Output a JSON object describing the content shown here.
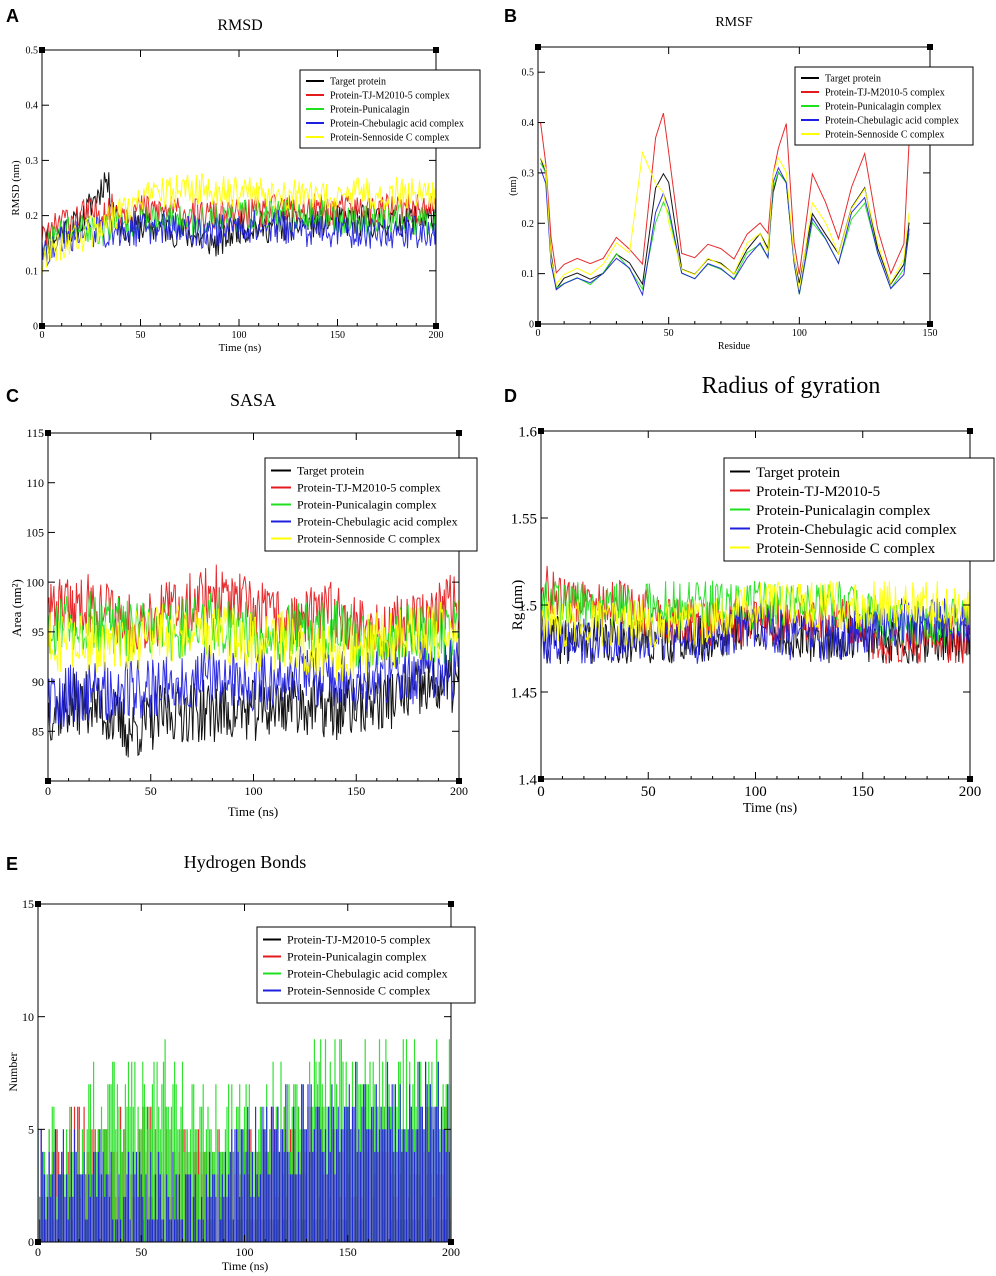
{
  "colors": {
    "black": "#000000",
    "red": "#e41a1c",
    "green": "#1fe01f",
    "blue": "#1f1fe0",
    "yellow": "#ffff00",
    "purple": "#7a1fa0"
  },
  "chart_data": [
    {
      "panel": "A",
      "type": "line",
      "title": "RMSD",
      "xlabel": "Time (ns)",
      "ylabel": "RMSD (nm)",
      "xlim": [
        0,
        200
      ],
      "ylim": [
        0,
        0.5
      ],
      "xticks": [
        0,
        50,
        100,
        150,
        200
      ],
      "yticks": [
        0,
        0.1,
        0.2,
        0.3,
        0.4,
        0.5
      ],
      "legend": "top-right",
      "series": [
        {
          "name": "Target protein",
          "color": "#000000",
          "x": [
            0,
            10,
            20,
            30,
            32,
            40,
            60,
            80,
            90,
            100,
            120,
            140,
            160,
            180,
            200
          ],
          "y": [
            0.15,
            0.17,
            0.19,
            0.25,
            0.27,
            0.18,
            0.18,
            0.16,
            0.15,
            0.18,
            0.18,
            0.19,
            0.19,
            0.19,
            0.2
          ]
        },
        {
          "name": "Protein-TJ-M2010-5 complex",
          "color": "#e41a1c",
          "x": [
            0,
            10,
            20,
            30,
            40,
            60,
            80,
            100,
            120,
            140,
            160,
            180,
            200
          ],
          "y": [
            0.15,
            0.19,
            0.2,
            0.21,
            0.21,
            0.21,
            0.2,
            0.2,
            0.21,
            0.21,
            0.21,
            0.21,
            0.21
          ]
        },
        {
          "name": "Protein-Punicalagin",
          "color": "#1fe01f",
          "x": [
            0,
            10,
            20,
            30,
            40,
            60,
            80,
            100,
            120,
            140,
            160,
            180,
            200
          ],
          "y": [
            0.14,
            0.17,
            0.18,
            0.17,
            0.19,
            0.19,
            0.19,
            0.2,
            0.2,
            0.2,
            0.19,
            0.19,
            0.19
          ]
        },
        {
          "name": "Protein-Chebulagic acid complex",
          "color": "#1f1fe0",
          "x": [
            0,
            10,
            20,
            30,
            40,
            60,
            80,
            100,
            120,
            140,
            160,
            180,
            200
          ],
          "y": [
            0.13,
            0.16,
            0.17,
            0.17,
            0.17,
            0.18,
            0.17,
            0.18,
            0.18,
            0.17,
            0.17,
            0.17,
            0.17
          ]
        },
        {
          "name": "Protein-Sennoside C complex",
          "color": "#ffff00",
          "x": [
            0,
            10,
            20,
            30,
            40,
            60,
            80,
            100,
            120,
            140,
            160,
            180,
            200
          ],
          "y": [
            0.12,
            0.15,
            0.16,
            0.18,
            0.21,
            0.24,
            0.25,
            0.24,
            0.24,
            0.23,
            0.24,
            0.24,
            0.24
          ]
        }
      ]
    },
    {
      "panel": "B",
      "type": "line",
      "title": "RMSF",
      "xlabel": "Residue",
      "ylabel": "(nm)",
      "xlim": [
        0,
        150
      ],
      "ylim": [
        0,
        0.55
      ],
      "xticks": [
        0,
        50,
        100,
        150
      ],
      "yticks": [
        0,
        0.1,
        0.2,
        0.3,
        0.4,
        0.5
      ],
      "legend": "top-right",
      "series": [
        {
          "name": "Target protein",
          "color": "#000000",
          "x": [
            1,
            3,
            5,
            7,
            10,
            15,
            20,
            25,
            30,
            35,
            40,
            45,
            48,
            50,
            55,
            60,
            65,
            70,
            75,
            80,
            85,
            88,
            90,
            92,
            95,
            98,
            100,
            105,
            110,
            115,
            120,
            125,
            130,
            135,
            140,
            142
          ],
          "y": [
            0.33,
            0.3,
            0.14,
            0.07,
            0.09,
            0.1,
            0.09,
            0.1,
            0.14,
            0.12,
            0.08,
            0.27,
            0.3,
            0.28,
            0.11,
            0.1,
            0.13,
            0.12,
            0.1,
            0.15,
            0.18,
            0.15,
            0.26,
            0.3,
            0.28,
            0.13,
            0.08,
            0.22,
            0.18,
            0.14,
            0.23,
            0.27,
            0.15,
            0.08,
            0.12,
            0.2
          ]
        },
        {
          "name": "Protein-TJ-M2010-5 complex",
          "color": "#e41a1c",
          "x": [
            1,
            3,
            5,
            7,
            10,
            15,
            20,
            25,
            30,
            35,
            40,
            45,
            48,
            50,
            55,
            60,
            65,
            70,
            75,
            80,
            85,
            88,
            90,
            92,
            95,
            98,
            100,
            105,
            110,
            115,
            120,
            125,
            130,
            135,
            140,
            142
          ],
          "y": [
            0.4,
            0.32,
            0.17,
            0.1,
            0.12,
            0.13,
            0.12,
            0.13,
            0.17,
            0.15,
            0.12,
            0.37,
            0.42,
            0.34,
            0.14,
            0.13,
            0.16,
            0.15,
            0.13,
            0.18,
            0.2,
            0.18,
            0.3,
            0.35,
            0.4,
            0.16,
            0.1,
            0.3,
            0.24,
            0.17,
            0.27,
            0.34,
            0.19,
            0.1,
            0.16,
            0.36
          ]
        },
        {
          "name": "Protein-Punicalagin complex",
          "color": "#1fe01f",
          "x": [
            1,
            3,
            5,
            7,
            10,
            15,
            20,
            25,
            30,
            35,
            40,
            45,
            48,
            50,
            55,
            60,
            65,
            70,
            75,
            80,
            85,
            88,
            90,
            92,
            95,
            98,
            100,
            105,
            110,
            115,
            120,
            125,
            130,
            135,
            140,
            142
          ],
          "y": [
            0.32,
            0.3,
            0.12,
            0.07,
            0.08,
            0.09,
            0.08,
            0.1,
            0.14,
            0.11,
            0.07,
            0.2,
            0.24,
            0.22,
            0.1,
            0.09,
            0.12,
            0.11,
            0.09,
            0.14,
            0.16,
            0.13,
            0.27,
            0.3,
            0.28,
            0.12,
            0.06,
            0.2,
            0.17,
            0.12,
            0.21,
            0.24,
            0.14,
            0.07,
            0.11,
            0.18
          ]
        },
        {
          "name": "Protein-Chebulagic acid complex",
          "color": "#1f1fe0",
          "x": [
            1,
            3,
            5,
            7,
            10,
            15,
            20,
            25,
            30,
            35,
            40,
            45,
            48,
            50,
            55,
            60,
            65,
            70,
            75,
            80,
            85,
            88,
            90,
            92,
            95,
            98,
            100,
            105,
            110,
            115,
            120,
            125,
            130,
            135,
            140,
            142
          ],
          "y": [
            0.31,
            0.28,
            0.12,
            0.07,
            0.08,
            0.09,
            0.08,
            0.1,
            0.13,
            0.11,
            0.06,
            0.22,
            0.26,
            0.23,
            0.1,
            0.09,
            0.12,
            0.11,
            0.09,
            0.13,
            0.16,
            0.13,
            0.28,
            0.31,
            0.28,
            0.12,
            0.06,
            0.21,
            0.17,
            0.12,
            0.22,
            0.25,
            0.14,
            0.07,
            0.1,
            0.19
          ]
        },
        {
          "name": "Protein-Sennoside C complex",
          "color": "#ffff00",
          "x": [
            1,
            3,
            5,
            7,
            10,
            15,
            20,
            25,
            30,
            35,
            40,
            45,
            48,
            50,
            55,
            60,
            65,
            70,
            75,
            80,
            85,
            88,
            90,
            92,
            95,
            98,
            100,
            105,
            110,
            115,
            120,
            125,
            130,
            135,
            140,
            142
          ],
          "y": [
            0.33,
            0.31,
            0.13,
            0.08,
            0.1,
            0.11,
            0.1,
            0.12,
            0.16,
            0.14,
            0.34,
            0.28,
            0.26,
            0.2,
            0.11,
            0.1,
            0.13,
            0.12,
            0.1,
            0.16,
            0.18,
            0.14,
            0.3,
            0.33,
            0.3,
            0.13,
            0.07,
            0.24,
            0.2,
            0.14,
            0.23,
            0.27,
            0.16,
            0.08,
            0.13,
            0.22
          ]
        }
      ]
    },
    {
      "panel": "C",
      "type": "line",
      "title": "SASA",
      "xlabel": "Time (ns)",
      "ylabel": "Area (nm²)",
      "xlim": [
        0,
        200
      ],
      "ylim": [
        80,
        115
      ],
      "xticks": [
        0,
        50,
        100,
        150,
        200
      ],
      "yticks": [
        85,
        90,
        95,
        100,
        105,
        110,
        115
      ],
      "legend": "top-right",
      "series": [
        {
          "name": "Target protein",
          "color": "#000000",
          "x": [
            0,
            20,
            40,
            60,
            80,
            100,
            120,
            140,
            160,
            180,
            200
          ],
          "y": [
            87,
            88,
            85,
            87,
            87,
            87,
            88,
            87,
            88,
            89,
            90
          ]
        },
        {
          "name": "Protein-TJ-M2010-5 complex",
          "color": "#e41a1c",
          "x": [
            0,
            20,
            40,
            60,
            80,
            100,
            120,
            140,
            160,
            180,
            200
          ],
          "y": [
            97,
            98,
            96,
            97,
            99,
            97,
            96,
            97,
            95,
            96,
            98
          ]
        },
        {
          "name": "Protein-Punicalagin complex",
          "color": "#1fe01f",
          "x": [
            0,
            20,
            40,
            60,
            80,
            100,
            120,
            140,
            160,
            180,
            200
          ],
          "y": [
            95,
            96,
            95,
            95,
            96,
            95,
            95,
            95,
            94,
            95,
            95
          ]
        },
        {
          "name": "Protein-Chebulagic acid complex",
          "color": "#1f1fe0",
          "x": [
            0,
            20,
            40,
            60,
            80,
            100,
            120,
            140,
            160,
            180,
            200
          ],
          "y": [
            88,
            89,
            89,
            90,
            91,
            90,
            91,
            90,
            90,
            91,
            91
          ]
        },
        {
          "name": "Protein-Sennoside C complex",
          "color": "#ffff00",
          "x": [
            0,
            20,
            40,
            60,
            80,
            100,
            120,
            140,
            160,
            180,
            200
          ],
          "y": [
            94,
            94,
            94,
            95,
            95,
            94,
            94,
            93,
            94,
            95,
            95
          ]
        }
      ]
    },
    {
      "panel": "D",
      "type": "line",
      "title": "Radius of gyration",
      "xlabel": "Time (ns)",
      "ylabel": "Rg (nm)",
      "xlim": [
        0,
        200
      ],
      "ylim": [
        1.4,
        1.6
      ],
      "xticks": [
        0,
        50,
        100,
        150,
        200
      ],
      "yticks": [
        1.4,
        1.45,
        1.5,
        1.55,
        1.6
      ],
      "legend": "top-right",
      "series": [
        {
          "name": "Target protein",
          "color": "#000000",
          "x": [
            0,
            20,
            40,
            60,
            80,
            100,
            120,
            140,
            160,
            180,
            200
          ],
          "y": [
            1.48,
            1.48,
            1.48,
            1.48,
            1.48,
            1.49,
            1.48,
            1.48,
            1.48,
            1.48,
            1.48
          ]
        },
        {
          "name": "Protein-TJ-M2010-5",
          "color": "#e41a1c",
          "x": [
            0,
            20,
            40,
            60,
            80,
            100,
            120,
            140,
            160,
            180,
            200
          ],
          "y": [
            1.51,
            1.5,
            1.5,
            1.49,
            1.49,
            1.49,
            1.49,
            1.49,
            1.48,
            1.48,
            1.48
          ]
        },
        {
          "name": "Protein-Punicalagin complex",
          "color": "#1fe01f",
          "x": [
            0,
            20,
            40,
            60,
            80,
            100,
            120,
            140,
            160,
            180,
            200
          ],
          "y": [
            1.5,
            1.5,
            1.5,
            1.5,
            1.5,
            1.5,
            1.5,
            1.5,
            1.49,
            1.49,
            1.49
          ]
        },
        {
          "name": "Protein-Chebulagic acid complex",
          "color": "#1f1fe0",
          "x": [
            0,
            20,
            40,
            60,
            80,
            100,
            120,
            140,
            160,
            180,
            200
          ],
          "y": [
            1.48,
            1.48,
            1.48,
            1.48,
            1.48,
            1.49,
            1.48,
            1.48,
            1.49,
            1.49,
            1.49
          ]
        },
        {
          "name": "Protein-Sennoside C complex",
          "color": "#ffff00",
          "x": [
            0,
            20,
            40,
            60,
            80,
            100,
            120,
            140,
            160,
            180,
            200
          ],
          "y": [
            1.49,
            1.49,
            1.49,
            1.49,
            1.49,
            1.5,
            1.5,
            1.5,
            1.5,
            1.5,
            1.5
          ]
        }
      ]
    },
    {
      "panel": "E",
      "type": "line",
      "title": "Hydrogen Bonds",
      "xlabel": "Time (ns)",
      "ylabel": "Number",
      "xlim": [
        0,
        200
      ],
      "ylim": [
        0,
        15
      ],
      "xticks": [
        0,
        50,
        100,
        150,
        200
      ],
      "yticks": [
        0,
        5,
        10,
        15
      ],
      "legend": "top-right",
      "series": [
        {
          "name": "Protein-TJ-M2010-5 complex",
          "color": "#000000",
          "x": [
            0,
            20,
            40,
            60,
            80,
            100,
            120,
            140,
            160,
            180,
            200
          ],
          "y": [
            0,
            0,
            0,
            0,
            0,
            0.5,
            0.5,
            0.5,
            0,
            0.5,
            0.5
          ]
        },
        {
          "name": "Protein-Punicalagin complex",
          "color": "#e41a1c",
          "x": [
            0,
            20,
            40,
            60,
            80,
            100,
            120,
            140,
            160,
            180,
            200
          ],
          "y": [
            3,
            4,
            4,
            4,
            3,
            3,
            4,
            4,
            4,
            4,
            4
          ]
        },
        {
          "name": "Protein-Chebulagic acid complex",
          "color": "#1fe01f",
          "x": [
            0,
            20,
            40,
            60,
            80,
            100,
            120,
            140,
            160,
            180,
            200
          ],
          "y": [
            4,
            5,
            6,
            7,
            5,
            5,
            6,
            7,
            7,
            7,
            7
          ]
        },
        {
          "name": "Protein-Sennoside C complex",
          "color": "#1f1fe0",
          "x": [
            0,
            20,
            40,
            60,
            80,
            100,
            120,
            140,
            160,
            180,
            200
          ],
          "y": [
            3,
            3,
            2,
            2,
            1,
            4,
            5,
            5,
            6,
            6,
            6
          ]
        }
      ]
    }
  ]
}
